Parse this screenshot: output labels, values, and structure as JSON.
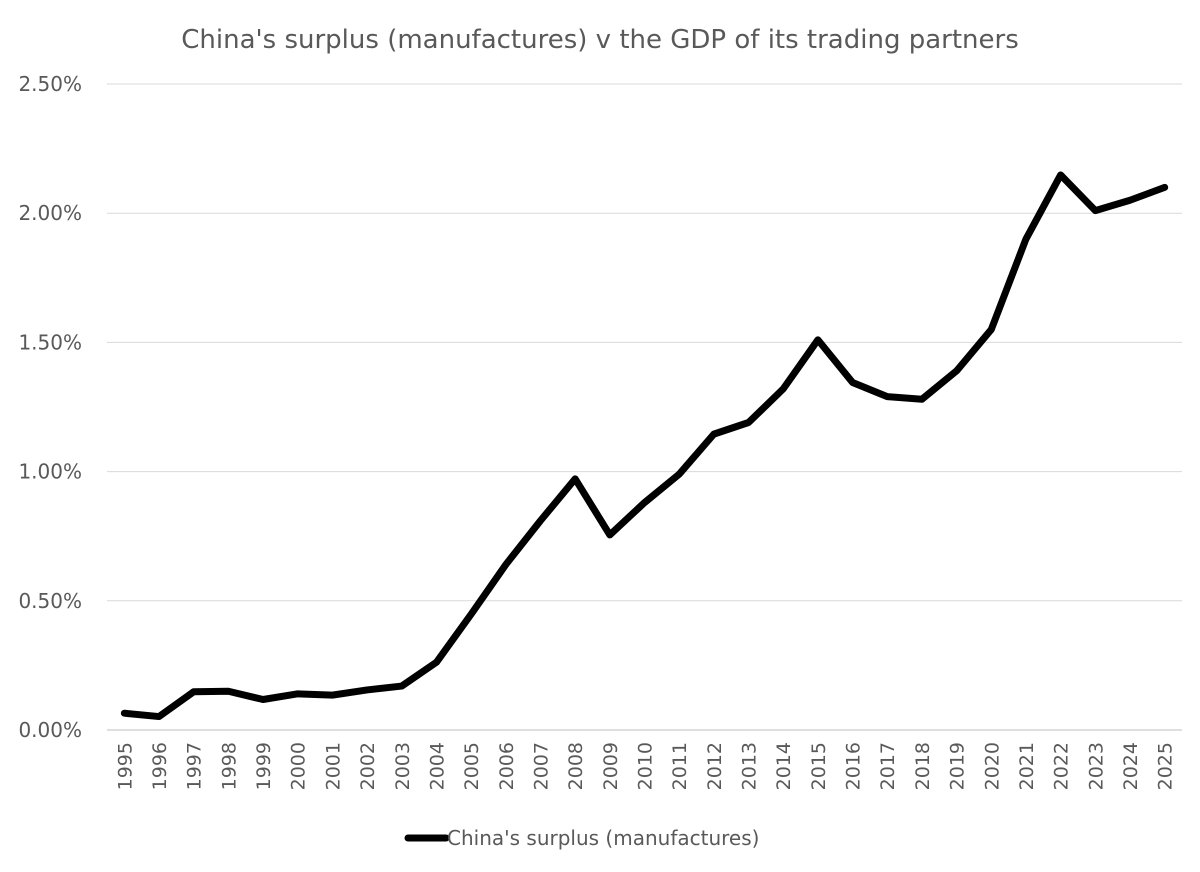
{
  "chart_data": {
    "type": "line",
    "title": "China's surplus (manufactures) v the GDP of its trading partners",
    "xlabel": "",
    "ylabel": "",
    "ylim": [
      0,
      0.025
    ],
    "y_ticks": [
      {
        "value": 0.0,
        "label": "0.00%"
      },
      {
        "value": 0.005,
        "label": "0.50%"
      },
      {
        "value": 0.01,
        "label": "1.00%"
      },
      {
        "value": 0.015,
        "label": "1.50%"
      },
      {
        "value": 0.02,
        "label": "2.00%"
      },
      {
        "value": 0.025,
        "label": "2.50%"
      }
    ],
    "grid": true,
    "legend_position": "bottom",
    "x": [
      "1995",
      "1996",
      "1997",
      "1998",
      "1999",
      "2000",
      "2001",
      "2002",
      "2003",
      "2004",
      "2005",
      "2006",
      "2007",
      "2008",
      "2009",
      "2010",
      "2011",
      "2012",
      "2013",
      "2014",
      "2015",
      "2016",
      "2017",
      "2018",
      "2019",
      "2020",
      "2021",
      "2022",
      "2023",
      "2024",
      "2025"
    ],
    "series": [
      {
        "name": "China's surplus (manufactures)",
        "color": "#000000",
        "values": [
          0.00065,
          0.00052,
          0.00148,
          0.0015,
          0.00118,
          0.0014,
          0.00135,
          0.00155,
          0.0017,
          0.00262,
          0.00448,
          0.0064,
          0.0081,
          0.00972,
          0.00755,
          0.0088,
          0.0099,
          0.01145,
          0.0119,
          0.0132,
          0.0151,
          0.01345,
          0.0129,
          0.0128,
          0.0139,
          0.0155,
          0.019,
          0.02148,
          0.0201,
          0.0205,
          0.021
        ]
      }
    ]
  }
}
